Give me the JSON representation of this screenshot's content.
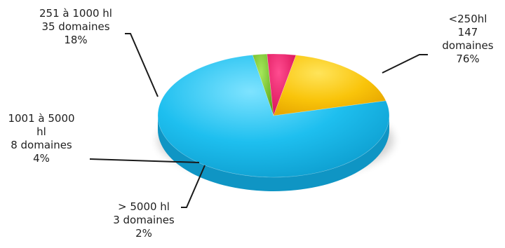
{
  "chart_data": {
    "type": "pie",
    "style": "3d-exploded-ring-free",
    "title": "",
    "slices": [
      {
        "label": [
          "<250hl",
          "147",
          "domaines",
          "76%"
        ],
        "category": "<250hl",
        "count": 147,
        "value": 76,
        "color": "#1EBFEF"
      },
      {
        "label": [
          "> 5000 hl",
          "3 domaines",
          "2%"
        ],
        "category": "> 5000 hl",
        "count": 3,
        "value": 2,
        "color": "#79C82B"
      },
      {
        "label": [
          "1001 à 5000",
          "hl",
          "8 domaines",
          "4%"
        ],
        "category": "1001 à 5000 hl",
        "count": 8,
        "value": 4,
        "color": "#E8155E"
      },
      {
        "label": [
          "251 à 1000 hl",
          "35 domaines",
          "18%"
        ],
        "category": "251 à 1000 hl",
        "count": 35,
        "value": 18,
        "color": "#F9C40A"
      }
    ],
    "legend": "none"
  }
}
